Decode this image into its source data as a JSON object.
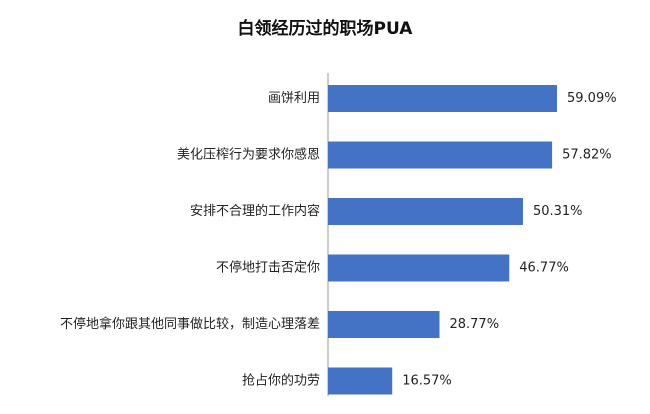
{
  "chart_data": {
    "type": "bar",
    "orientation": "horizontal",
    "title": "白领经历过的职场PUA",
    "categories": [
      "画饼利用",
      "美化压榨行为要求你感恩",
      "安排不合理的工作内容",
      "不停地打击否定你",
      "不停地拿你跟其他同事做比较，制造心理落差",
      "抢占你的功劳"
    ],
    "values": [
      59.09,
      57.82,
      50.31,
      46.77,
      28.77,
      16.57
    ],
    "value_labels": [
      "59.09%",
      "57.82%",
      "50.31%",
      "46.77%",
      "28.77%",
      "16.57%"
    ],
    "unit": "%",
    "xlim": [
      0,
      70
    ],
    "grid": false,
    "legend": "none",
    "bar_color": "#4472c4"
  }
}
